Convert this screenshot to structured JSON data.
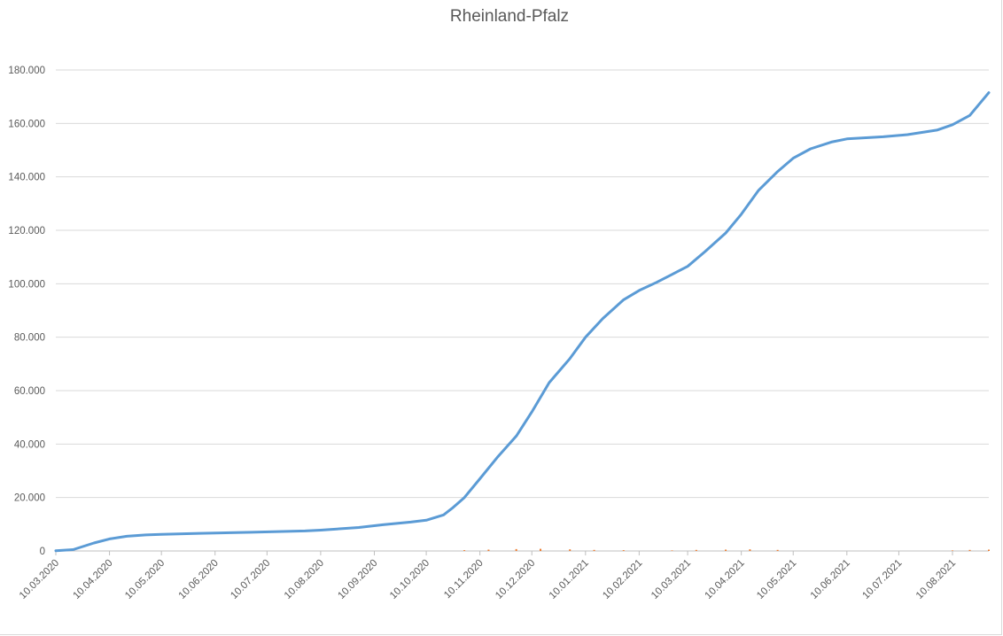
{
  "chart_data": {
    "type": "line",
    "title": "Rheinland-Pfalz",
    "xlabel": "",
    "ylabel": "",
    "ylim": [
      0,
      180000
    ],
    "grid": true,
    "legend": "none",
    "y_ticks": [
      {
        "value": 0,
        "label": "0"
      },
      {
        "value": 20000,
        "label": "20.000"
      },
      {
        "value": 40000,
        "label": "40.000"
      },
      {
        "value": 60000,
        "label": "60.000"
      },
      {
        "value": 80000,
        "label": "80.000"
      },
      {
        "value": 100000,
        "label": "100.000"
      },
      {
        "value": 120000,
        "label": "120.000"
      },
      {
        "value": 140000,
        "label": "140.000"
      },
      {
        "value": 160000,
        "label": "160.000"
      },
      {
        "value": 180000,
        "label": "180.000"
      }
    ],
    "x_ticks": [
      "10.03.2020",
      "10.04.2020",
      "10.05.2020",
      "10.06.2020",
      "10.07.2020",
      "10.08.2020",
      "10.09.2020",
      "10.10.2020",
      "10.11.2020",
      "10.12.2020",
      "10.01.2021",
      "10.02.2021",
      "10.03.2021",
      "10.04.2021",
      "10.05.2021",
      "10.06.2021",
      "10.07.2021",
      "10.08.2021"
    ],
    "xlim": [
      "10.03.2020",
      "31.08.2021"
    ],
    "series": [
      {
        "type": "line",
        "color": "#5b9bd5",
        "x": [
          "10.03.2020",
          "20.03.2020",
          "01.04.2020",
          "10.04.2020",
          "20.04.2020",
          "01.05.2020",
          "10.05.2020",
          "01.06.2020",
          "01.07.2020",
          "01.08.2020",
          "10.08.2020",
          "01.09.2020",
          "15.09.2020",
          "01.10.2020",
          "10.10.2020",
          "20.10.2020",
          "25.10.2020",
          "01.11.2020",
          "10.11.2020",
          "20.11.2020",
          "01.12.2020",
          "10.12.2020",
          "20.12.2020",
          "01.01.2021",
          "10.01.2021",
          "20.01.2021",
          "01.02.2021",
          "10.02.2021",
          "20.02.2021",
          "01.03.2021",
          "10.03.2021",
          "20.03.2021",
          "01.04.2021",
          "10.04.2021",
          "20.04.2021",
          "01.05.2021",
          "10.05.2021",
          "20.05.2021",
          "01.06.2021",
          "10.06.2021",
          "01.07.2021",
          "15.07.2021",
          "01.08.2021",
          "10.08.2021",
          "20.08.2021",
          "31.08.2021"
        ],
        "values": [
          100,
          500,
          3000,
          4500,
          5500,
          6000,
          6200,
          6600,
          7000,
          7500,
          7800,
          8800,
          9800,
          10800,
          11500,
          13500,
          16000,
          20000,
          27000,
          35000,
          43000,
          52000,
          63000,
          72000,
          80000,
          87000,
          94000,
          97500,
          100500,
          103500,
          106500,
          112000,
          119000,
          126000,
          135000,
          142000,
          147000,
          150500,
          153000,
          154200,
          155000,
          155800,
          157500,
          159500,
          163000,
          171500
        ]
      },
      {
        "type": "bar",
        "name": "",
        "color": "#ed7d31",
        "x": [
          "01.11.2020",
          "15.11.2020",
          "01.12.2020",
          "15.12.2020",
          "01.01.2021",
          "15.01.2021",
          "01.02.2021",
          "01.03.2021",
          "15.03.2021",
          "01.04.2021",
          "15.04.2021",
          "01.05.2021",
          "10.08.2021",
          "20.08.2021",
          "31.08.2021"
        ],
        "values": [
          300,
          500,
          700,
          800,
          600,
          400,
          300,
          200,
          400,
          500,
          600,
          400,
          200,
          400,
          500
        ]
      }
    ]
  }
}
